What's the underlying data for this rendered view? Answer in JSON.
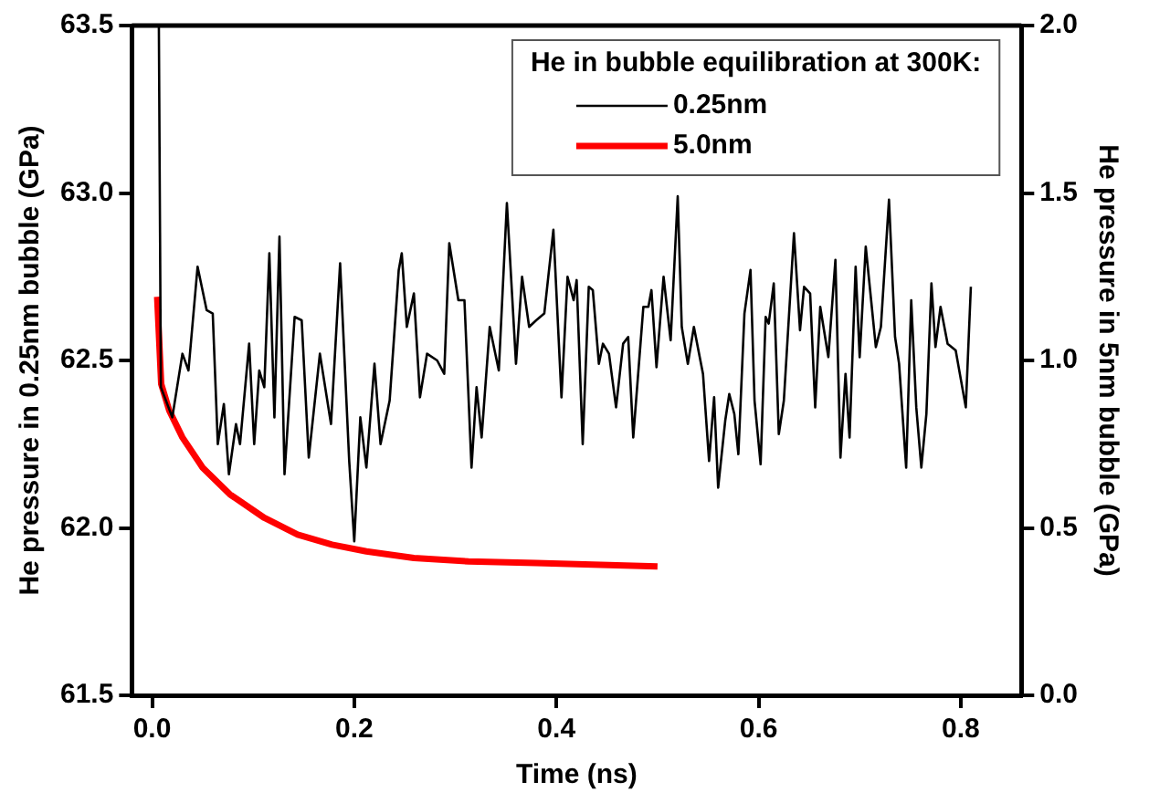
{
  "chart_data": {
    "type": "line",
    "xlabel": "Time (ns)",
    "ylabel": "He pressure in 0.25nm bubble (GPa)",
    "y2label": "He pressure in 5nm bubble (GPa)",
    "legend_title": "He in bubble equilibration at 300K:",
    "xlim": [
      -0.02,
      0.86
    ],
    "xticks": [
      {
        "value": 0,
        "label": "0.0"
      },
      0.2,
      0.4,
      0.6,
      0.8
    ],
    "ylim": [
      61.5,
      63.5
    ],
    "yticks": [
      61.5,
      {
        "value": 62,
        "label": "62.0"
      },
      62.5,
      {
        "value": 63,
        "label": "63.0"
      },
      63.5
    ],
    "y2lim": [
      0,
      2
    ],
    "y2ticks": [
      {
        "value": 0,
        "label": "0.0"
      },
      0.5,
      {
        "value": 1,
        "label": "1.0"
      },
      1.5,
      {
        "value": 2,
        "label": "2.0"
      }
    ],
    "grid": false,
    "legend": "top right",
    "marker": "none",
    "line_style": "solid",
    "series": [
      {
        "name": "0.25nm",
        "color": "#000000",
        "x": [
          0.0067,
          0.0087,
          0.02,
          0.03,
          0.036,
          0.045,
          0.054,
          0.06,
          0.065,
          0.071,
          0.076,
          0.083,
          0.087,
          0.096,
          0.101,
          0.106,
          0.111,
          0.116,
          0.121,
          0.126,
          0.131,
          0.141,
          0.148,
          0.155,
          0.166,
          0.177,
          0.186,
          0.195,
          0.2,
          0.206,
          0.212,
          0.22,
          0.226,
          0.235,
          0.244,
          0.247,
          0.252,
          0.259,
          0.265,
          0.272,
          0.282,
          0.289,
          0.294,
          0.303,
          0.309,
          0.316,
          0.321,
          0.326,
          0.334,
          0.343,
          0.351,
          0.36,
          0.366,
          0.373,
          0.38,
          0.388,
          0.397,
          0.405,
          0.411,
          0.417,
          0.42,
          0.426,
          0.432,
          0.436,
          0.442,
          0.446,
          0.452,
          0.459,
          0.466,
          0.471,
          0.476,
          0.486,
          0.491,
          0.494,
          0.499,
          0.506,
          0.513,
          0.52,
          0.524,
          0.53,
          0.536,
          0.545,
          0.551,
          0.556,
          0.56,
          0.567,
          0.571,
          0.576,
          0.58,
          0.586,
          0.592,
          0.596,
          0.602,
          0.607,
          0.61,
          0.615,
          0.62,
          0.625,
          0.635,
          0.641,
          0.645,
          0.651,
          0.656,
          0.661,
          0.669,
          0.676,
          0.681,
          0.686,
          0.69,
          0.696,
          0.7,
          0.706,
          0.709,
          0.716,
          0.721,
          0.729,
          0.735,
          0.739,
          0.746,
          0.751,
          0.756,
          0.761,
          0.766,
          0.771,
          0.775,
          0.78,
          0.787,
          0.795,
          0.805,
          0.81
        ],
        "values": [
          63.5,
          62.42,
          62.33,
          62.52,
          62.47,
          62.78,
          62.65,
          62.64,
          62.25,
          62.37,
          62.16,
          62.31,
          62.25,
          62.55,
          62.25,
          62.47,
          62.42,
          62.82,
          62.33,
          62.87,
          62.16,
          62.63,
          62.62,
          62.21,
          62.52,
          62.31,
          62.79,
          62.2,
          61.96,
          62.33,
          62.18,
          62.49,
          62.25,
          62.38,
          62.77,
          62.82,
          62.6,
          62.7,
          62.39,
          62.52,
          62.5,
          62.46,
          62.85,
          62.68,
          62.68,
          62.18,
          62.42,
          62.27,
          62.6,
          62.47,
          62.97,
          62.49,
          62.75,
          62.6,
          62.62,
          62.64,
          62.89,
          62.39,
          62.75,
          62.68,
          62.74,
          62.25,
          62.72,
          62.71,
          62.49,
          62.55,
          62.52,
          62.36,
          62.55,
          62.57,
          62.27,
          62.66,
          62.66,
          62.71,
          62.48,
          62.75,
          62.56,
          62.99,
          62.6,
          62.49,
          62.6,
          62.46,
          62.2,
          62.39,
          62.12,
          62.32,
          62.4,
          62.34,
          62.22,
          62.64,
          62.77,
          62.38,
          62.19,
          62.63,
          62.61,
          62.73,
          62.28,
          62.38,
          62.88,
          62.59,
          62.72,
          62.7,
          62.36,
          62.66,
          62.51,
          62.8,
          62.21,
          62.46,
          62.27,
          62.78,
          62.51,
          62.84,
          62.75,
          62.54,
          62.6,
          62.98,
          62.57,
          62.49,
          62.18,
          62.68,
          62.36,
          62.18,
          62.34,
          62.73,
          62.54,
          62.66,
          62.55,
          62.53,
          62.36,
          62.72
        ]
      },
      {
        "name": "5.0nm",
        "color": "#ff0000",
        "axis": "y2",
        "x": [
          0.005,
          0.009,
          0.017,
          0.03,
          0.05,
          0.077,
          0.111,
          0.144,
          0.178,
          0.212,
          0.259,
          0.313,
          0.38,
          0.5
        ],
        "values": [
          1.19,
          0.93,
          0.85,
          0.77,
          0.68,
          0.6,
          0.53,
          0.48,
          0.45,
          0.43,
          0.41,
          0.4,
          0.395,
          0.385
        ]
      }
    ]
  }
}
